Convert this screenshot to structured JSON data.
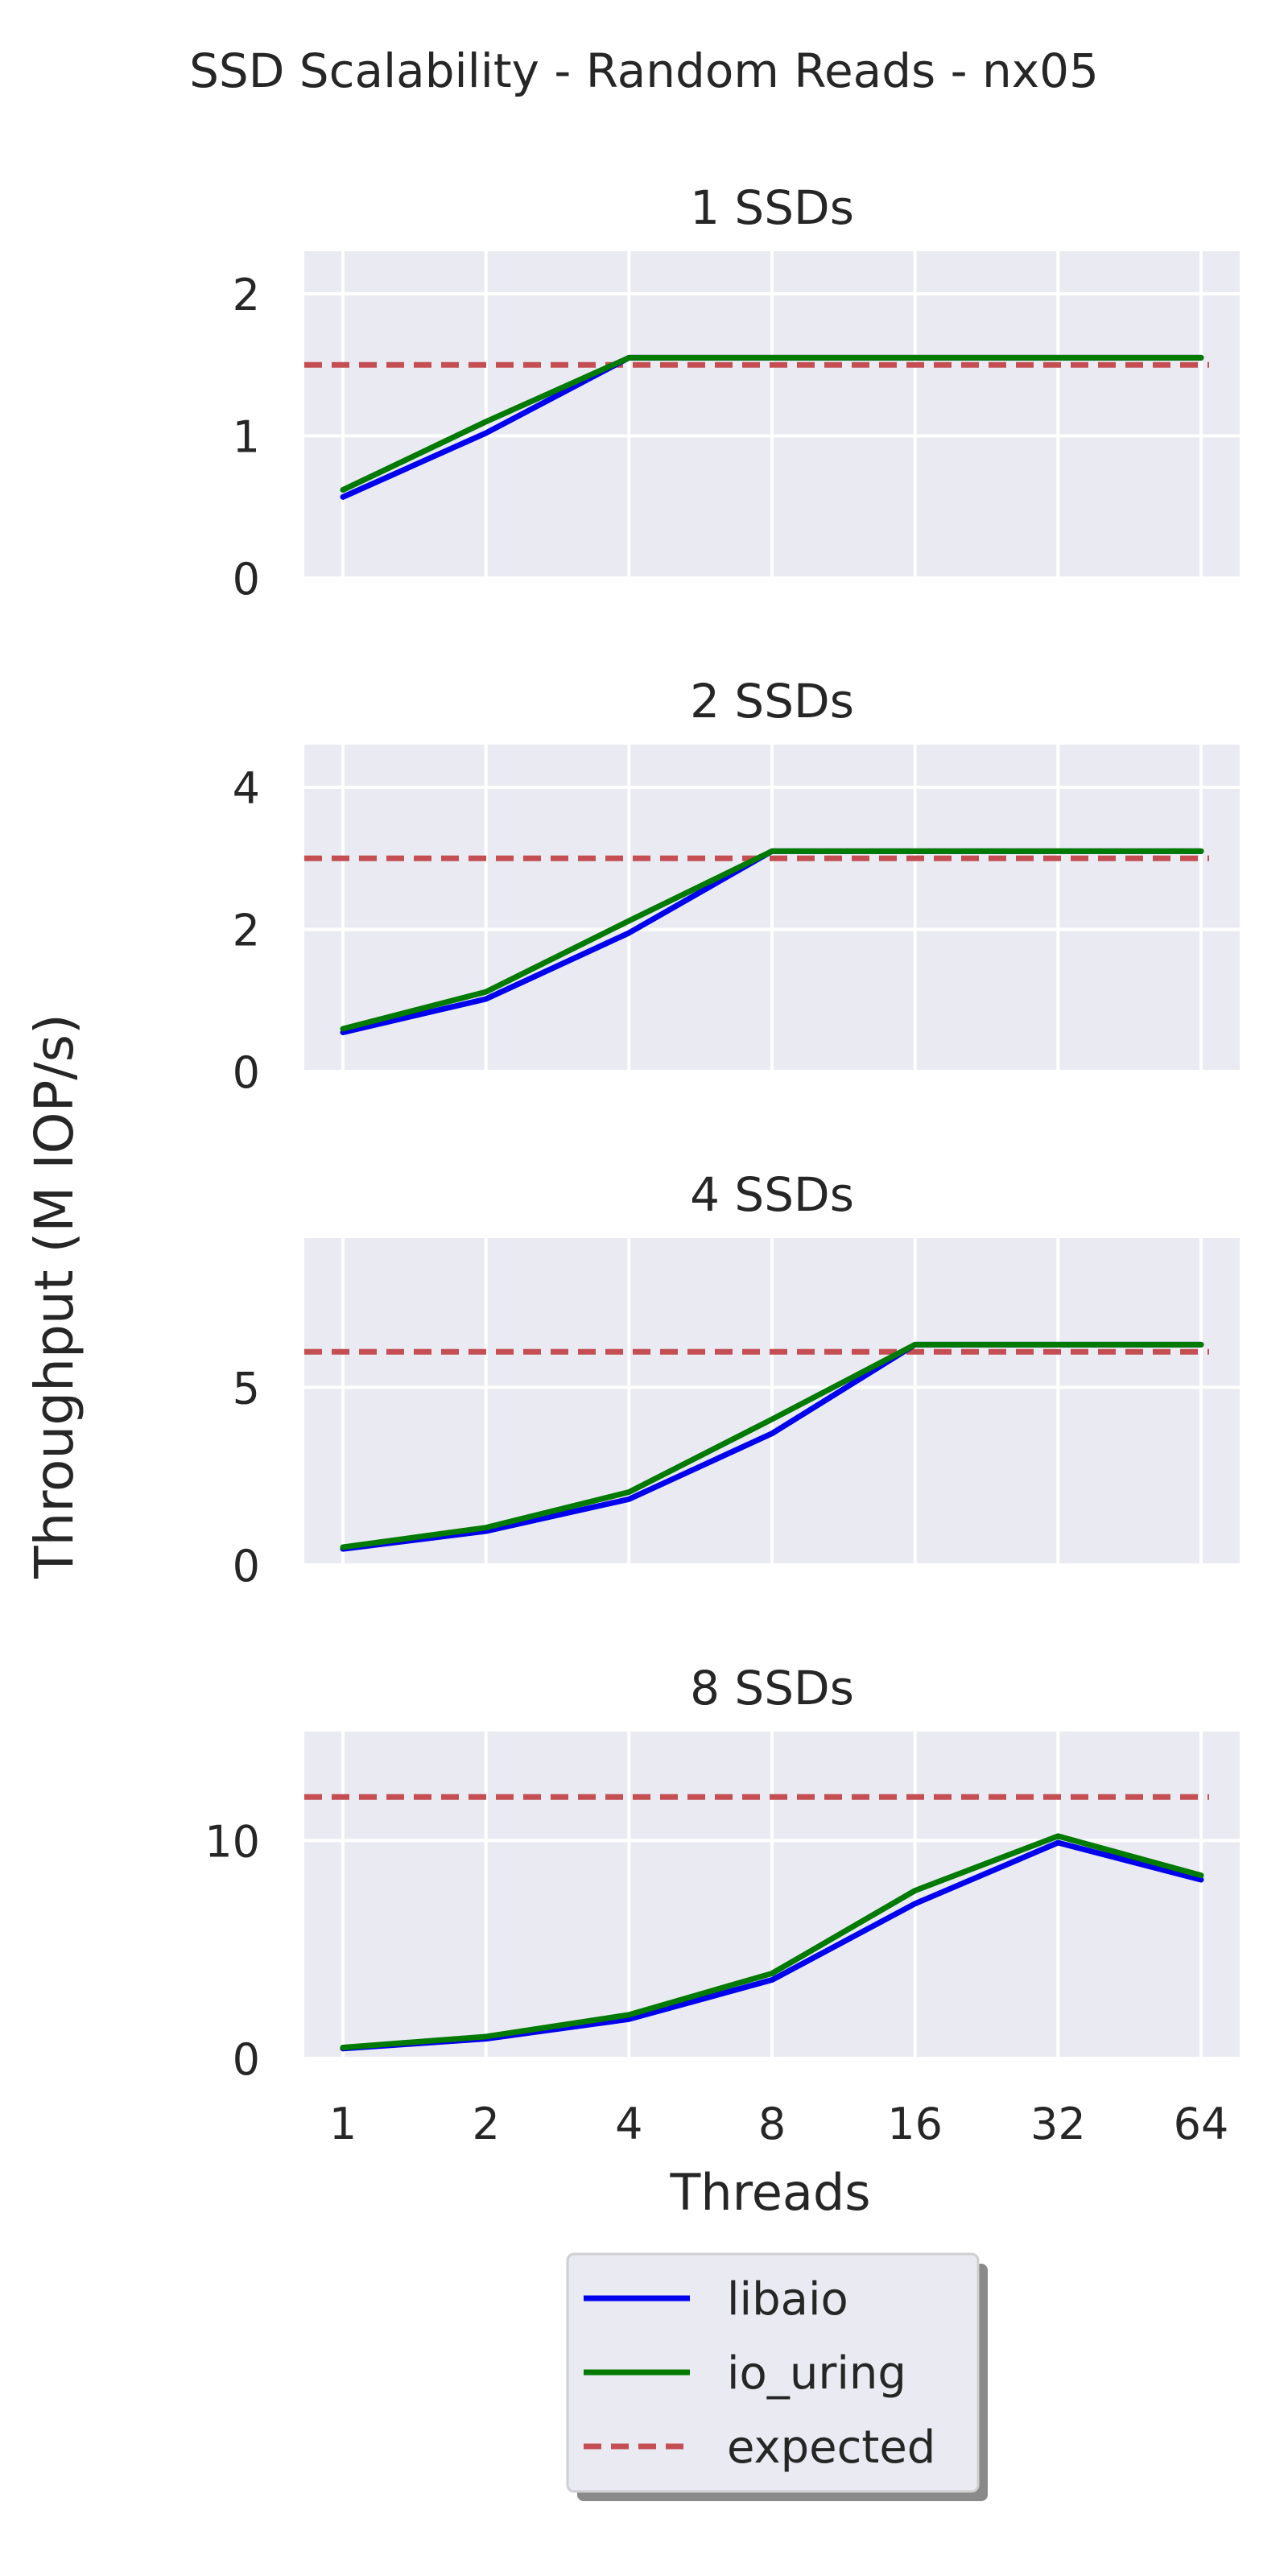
{
  "figure": {
    "title": "SSD Scalability - Random Reads - nx05",
    "ylabel": "Throughput (M IOP/s)",
    "xlabel": "Threads"
  },
  "legend": {
    "placement": "bottom-center",
    "items": [
      {
        "label": "libaio",
        "color": "#0000ee",
        "style": "solid"
      },
      {
        "label": "io_uring",
        "color": "#007a00",
        "style": "solid"
      },
      {
        "label": "expected",
        "color": "#c44e52",
        "style": "dashed"
      }
    ]
  },
  "colors": {
    "axes_background": "#eaeaf2",
    "grid": "#ffffff",
    "text": "#262626"
  },
  "chart_data": [
    {
      "type": "line",
      "title": "1 SSDs",
      "x": [
        "1",
        "2",
        "4",
        "8",
        "16",
        "32",
        "64"
      ],
      "ylim": [
        0,
        2.3
      ],
      "yticks": [
        0,
        1,
        2
      ],
      "grid": true,
      "series": [
        {
          "name": "libaio",
          "values": [
            0.57,
            1.02,
            1.55,
            1.55,
            1.55,
            1.55,
            1.55
          ]
        },
        {
          "name": "io_uring",
          "values": [
            0.62,
            1.1,
            1.55,
            1.55,
            1.55,
            1.55,
            1.55
          ]
        }
      ],
      "expected": 1.5
    },
    {
      "type": "line",
      "title": "2 SSDs",
      "x": [
        "1",
        "2",
        "4",
        "8",
        "16",
        "32",
        "64"
      ],
      "ylim": [
        0,
        4.6
      ],
      "yticks": [
        0,
        2,
        4
      ],
      "grid": true,
      "series": [
        {
          "name": "libaio",
          "values": [
            0.55,
            1.02,
            1.95,
            3.1,
            3.1,
            3.1,
            3.1
          ]
        },
        {
          "name": "io_uring",
          "values": [
            0.6,
            1.12,
            2.12,
            3.1,
            3.1,
            3.1,
            3.1
          ]
        }
      ],
      "expected": 3.0
    },
    {
      "type": "line",
      "title": "4 SSDs",
      "x": [
        "1",
        "2",
        "4",
        "8",
        "16",
        "32",
        "64"
      ],
      "ylim": [
        0,
        9.2
      ],
      "yticks": [
        0,
        5
      ],
      "grid": true,
      "series": [
        {
          "name": "libaio",
          "values": [
            0.45,
            0.95,
            1.85,
            3.7,
            6.2,
            6.2,
            6.2
          ]
        },
        {
          "name": "io_uring",
          "values": [
            0.5,
            1.05,
            2.05,
            4.1,
            6.2,
            6.2,
            6.2
          ]
        }
      ],
      "expected": 6.0
    },
    {
      "type": "line",
      "title": "8 SSDs",
      "x": [
        "1",
        "2",
        "4",
        "8",
        "16",
        "32",
        "64"
      ],
      "ylim": [
        0,
        15
      ],
      "yticks": [
        0,
        10
      ],
      "grid": true,
      "series": [
        {
          "name": "libaio",
          "values": [
            0.45,
            0.9,
            1.8,
            3.6,
            7.1,
            9.9,
            8.2
          ]
        },
        {
          "name": "io_uring",
          "values": [
            0.5,
            1.0,
            2.0,
            3.9,
            7.7,
            10.2,
            8.4
          ]
        }
      ],
      "expected": 12.0
    }
  ]
}
